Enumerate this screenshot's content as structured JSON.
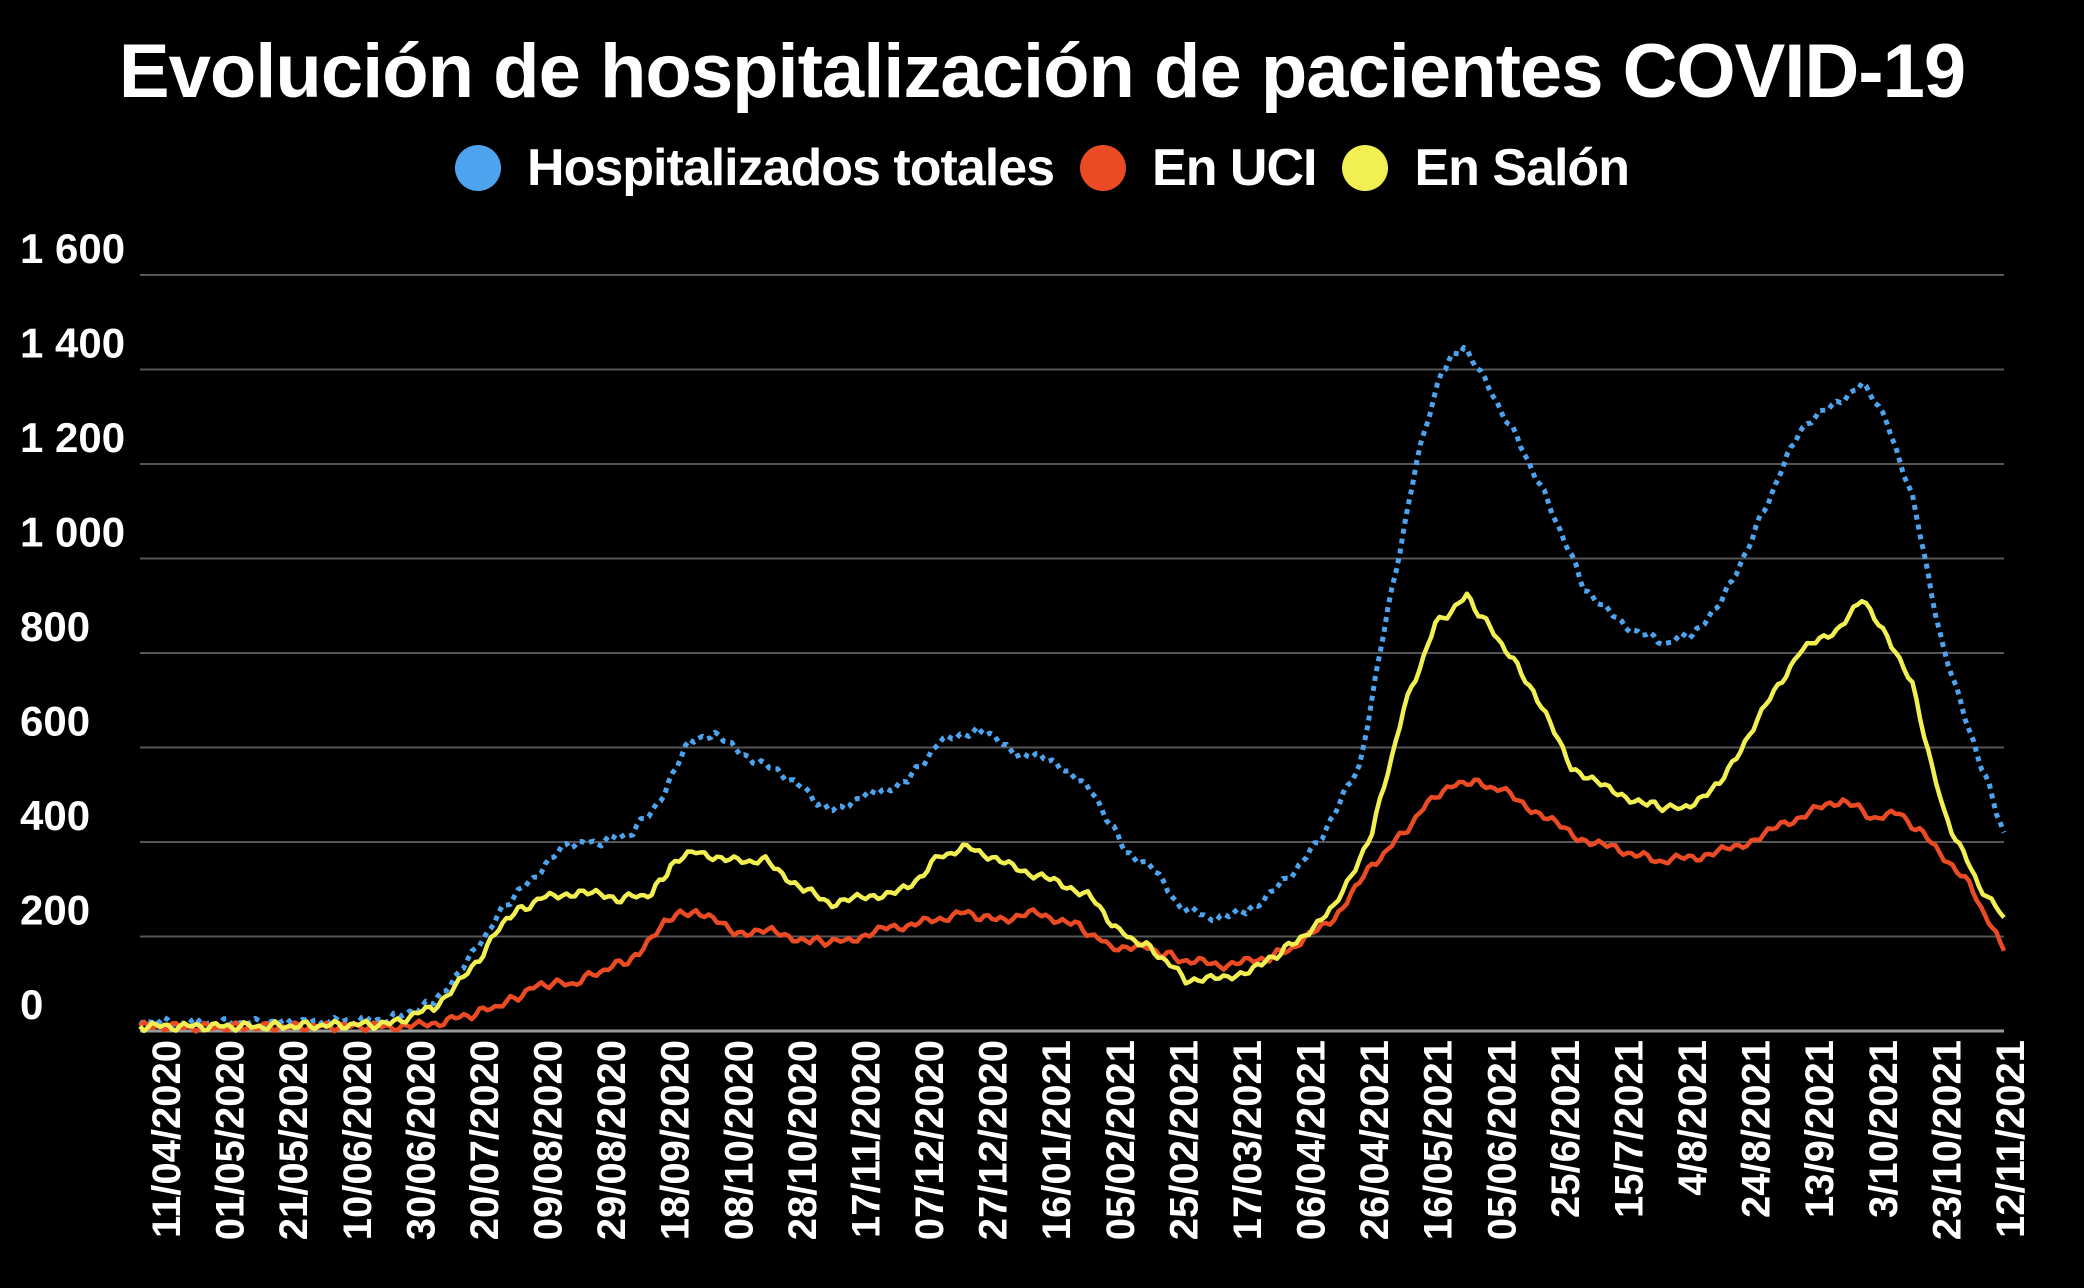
{
  "chart_data": {
    "type": "line",
    "title": "Evolución de hospitalización de pacientes COVID-19",
    "ylim": [
      0,
      1600
    ],
    "yticks": [
      0,
      200,
      400,
      600,
      800,
      1000,
      1200,
      1400,
      1600
    ],
    "ytick_labels": [
      "0",
      "200",
      "400",
      "600",
      "800",
      "1 000",
      "1 200",
      "1 400",
      "1 600"
    ],
    "grid": "horizontal",
    "legend_position": "top-center",
    "x_tick_labels": [
      "11/04/2020",
      "01/05/2020",
      "21/05/2020",
      "10/06/2020",
      "30/06/2020",
      "20/07/2020",
      "09/08/2020",
      "29/08/2020",
      "18/09/2020",
      "08/10/2020",
      "28/10/2020",
      "17/11/2020",
      "07/12/2020",
      "27/12/2020",
      "16/01/2021",
      "05/02/2021",
      "25/02/2021",
      "17/03/2021",
      "06/04/2021",
      "26/04/2021",
      "16/05/2021",
      "05/06/2021",
      "25/6/2021",
      "15/7/2021",
      "4/8/2021",
      "24/8/2021",
      "13/9/2021",
      "3/10/2021",
      "23/10/2021",
      "12/11/2021"
    ],
    "x_range": [
      "2020-04-01",
      "2021-11-12"
    ],
    "series": [
      {
        "name": "Hospitalizados totales",
        "color": "#4da3ee",
        "style": "dotted",
        "points": [
          [
            "2020-04-01",
            20
          ],
          [
            "2020-04-20",
            18
          ],
          [
            "2020-05-10",
            18
          ],
          [
            "2020-05-30",
            20
          ],
          [
            "2020-06-19",
            25
          ],
          [
            "2020-07-03",
            60
          ],
          [
            "2020-07-15",
            160
          ],
          [
            "2020-07-26",
            270
          ],
          [
            "2020-08-06",
            340
          ],
          [
            "2020-08-14",
            395
          ],
          [
            "2020-08-25",
            400
          ],
          [
            "2020-09-04",
            420
          ],
          [
            "2020-09-14",
            500
          ],
          [
            "2020-09-22",
            620
          ],
          [
            "2020-09-30",
            625
          ],
          [
            "2020-10-12",
            575
          ],
          [
            "2020-10-25",
            530
          ],
          [
            "2020-11-05",
            465
          ],
          [
            "2020-11-18",
            500
          ],
          [
            "2020-11-30",
            530
          ],
          [
            "2020-12-10",
            610
          ],
          [
            "2020-12-22",
            640
          ],
          [
            "2021-01-03",
            590
          ],
          [
            "2021-01-16",
            570
          ],
          [
            "2021-01-28",
            500
          ],
          [
            "2021-02-07",
            380
          ],
          [
            "2021-02-15",
            350
          ],
          [
            "2021-02-23",
            270
          ],
          [
            "2021-03-05",
            240
          ],
          [
            "2021-03-17",
            250
          ],
          [
            "2021-03-30",
            320
          ],
          [
            "2021-04-09",
            400
          ],
          [
            "2021-04-22",
            560
          ],
          [
            "2021-05-01",
            890
          ],
          [
            "2021-05-10",
            1200
          ],
          [
            "2021-05-18",
            1400
          ],
          [
            "2021-05-25",
            1450
          ],
          [
            "2021-06-02",
            1360
          ],
          [
            "2021-06-12",
            1240
          ],
          [
            "2021-06-22",
            1100
          ],
          [
            "2021-07-02",
            940
          ],
          [
            "2021-07-14",
            860
          ],
          [
            "2021-07-28",
            820
          ],
          [
            "2021-08-08",
            850
          ],
          [
            "2021-08-18",
            950
          ],
          [
            "2021-08-28",
            1100
          ],
          [
            "2021-09-08",
            1270
          ],
          [
            "2021-09-20",
            1330
          ],
          [
            "2021-09-28",
            1370
          ],
          [
            "2021-10-06",
            1290
          ],
          [
            "2021-10-14",
            1130
          ],
          [
            "2021-10-24",
            800
          ],
          [
            "2021-11-05",
            560
          ],
          [
            "2021-11-12",
            420
          ]
        ]
      },
      {
        "name": "En UCI",
        "color": "#ea4b24",
        "style": "solid",
        "points": [
          [
            "2020-04-01",
            10
          ],
          [
            "2020-04-20",
            8
          ],
          [
            "2020-05-10",
            8
          ],
          [
            "2020-05-30",
            10
          ],
          [
            "2020-06-19",
            10
          ],
          [
            "2020-07-01",
            12
          ],
          [
            "2020-07-15",
            35
          ],
          [
            "2020-07-26",
            60
          ],
          [
            "2020-08-06",
            100
          ],
          [
            "2020-08-16",
            100
          ],
          [
            "2020-08-26",
            130
          ],
          [
            "2020-09-06",
            160
          ],
          [
            "2020-09-14",
            235
          ],
          [
            "2020-09-24",
            255
          ],
          [
            "2020-10-06",
            210
          ],
          [
            "2020-10-18",
            210
          ],
          [
            "2020-10-30",
            190
          ],
          [
            "2020-11-10",
            190
          ],
          [
            "2020-11-22",
            215
          ],
          [
            "2020-12-05",
            230
          ],
          [
            "2020-12-18",
            250
          ],
          [
            "2020-12-28",
            235
          ],
          [
            "2021-01-10",
            250
          ],
          [
            "2021-01-22",
            225
          ],
          [
            "2021-02-02",
            180
          ],
          [
            "2021-02-14",
            175
          ],
          [
            "2021-02-25",
            150
          ],
          [
            "2021-03-10",
            140
          ],
          [
            "2021-03-22",
            150
          ],
          [
            "2021-04-02",
            180
          ],
          [
            "2021-04-14",
            240
          ],
          [
            "2021-04-26",
            350
          ],
          [
            "2021-05-06",
            420
          ],
          [
            "2021-05-16",
            500
          ],
          [
            "2021-05-26",
            530
          ],
          [
            "2021-06-06",
            510
          ],
          [
            "2021-06-18",
            460
          ],
          [
            "2021-06-30",
            410
          ],
          [
            "2021-07-12",
            385
          ],
          [
            "2021-07-26",
            360
          ],
          [
            "2021-08-08",
            370
          ],
          [
            "2021-08-20",
            390
          ],
          [
            "2021-09-01",
            430
          ],
          [
            "2021-09-14",
            470
          ],
          [
            "2021-09-22",
            490
          ],
          [
            "2021-10-02",
            450
          ],
          [
            "2021-10-10",
            460
          ],
          [
            "2021-10-20",
            400
          ],
          [
            "2021-11-01",
            310
          ],
          [
            "2021-11-12",
            170
          ]
        ]
      },
      {
        "name": "En Salón",
        "color": "#f1ef52",
        "style": "solid",
        "points": [
          [
            "2020-04-01",
            10
          ],
          [
            "2020-04-20",
            10
          ],
          [
            "2020-05-10",
            10
          ],
          [
            "2020-05-30",
            12
          ],
          [
            "2020-06-19",
            15
          ],
          [
            "2020-07-03",
            50
          ],
          [
            "2020-07-15",
            130
          ],
          [
            "2020-07-26",
            240
          ],
          [
            "2020-08-06",
            280
          ],
          [
            "2020-08-18",
            295
          ],
          [
            "2020-08-30",
            280
          ],
          [
            "2020-09-10",
            290
          ],
          [
            "2020-09-16",
            350
          ],
          [
            "2020-09-24",
            380
          ],
          [
            "2020-10-06",
            360
          ],
          [
            "2020-10-16",
            360
          ],
          [
            "2020-10-28",
            300
          ],
          [
            "2020-11-06",
            270
          ],
          [
            "2020-11-18",
            285
          ],
          [
            "2020-11-30",
            300
          ],
          [
            "2020-12-10",
            370
          ],
          [
            "2020-12-20",
            390
          ],
          [
            "2021-01-01",
            350
          ],
          [
            "2021-01-14",
            320
          ],
          [
            "2021-01-26",
            290
          ],
          [
            "2021-02-05",
            210
          ],
          [
            "2021-02-16",
            170
          ],
          [
            "2021-02-26",
            110
          ],
          [
            "2021-03-10",
            110
          ],
          [
            "2021-03-22",
            140
          ],
          [
            "2021-04-02",
            190
          ],
          [
            "2021-04-14",
            260
          ],
          [
            "2021-04-26",
            420
          ],
          [
            "2021-05-06",
            680
          ],
          [
            "2021-05-16",
            860
          ],
          [
            "2021-05-26",
            920
          ],
          [
            "2021-06-06",
            820
          ],
          [
            "2021-06-16",
            720
          ],
          [
            "2021-06-28",
            560
          ],
          [
            "2021-07-10",
            510
          ],
          [
            "2021-07-22",
            480
          ],
          [
            "2021-08-02",
            470
          ],
          [
            "2021-08-14",
            520
          ],
          [
            "2021-08-26",
            660
          ],
          [
            "2021-09-08",
            800
          ],
          [
            "2021-09-20",
            850
          ],
          [
            "2021-09-28",
            910
          ],
          [
            "2021-10-06",
            840
          ],
          [
            "2021-10-14",
            730
          ],
          [
            "2021-10-24",
            460
          ],
          [
            "2021-11-04",
            310
          ],
          [
            "2021-11-12",
            240
          ]
        ]
      }
    ]
  }
}
